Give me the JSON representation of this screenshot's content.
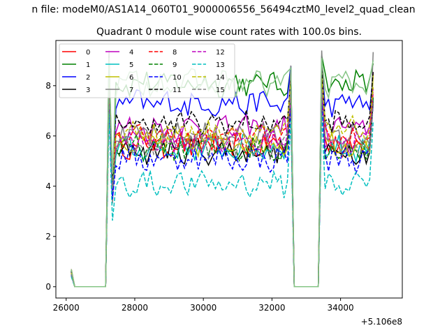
{
  "chart_data": {
    "type": "line",
    "suptitle": "n file: modeM0/AS1A14_060T01_9000006556_56494cztM0_level2_quad_clean",
    "title": "Quadrant 0 module wise count rates with 100.0s bins.",
    "xlabel": "",
    "ylabel": "",
    "x_offset_label": "+5.106e8",
    "xlim": [
      25700,
      35800
    ],
    "ylim": [
      -0.45,
      9.8
    ],
    "xticks": [
      26000,
      28000,
      30000,
      32000,
      34000
    ],
    "xtick_labels": [
      "26000",
      "28000",
      "30000",
      "32000",
      "34000"
    ],
    "yticks": [
      0,
      2,
      4,
      6,
      8
    ],
    "ytick_labels": [
      "0",
      "2",
      "4",
      "6",
      "8"
    ],
    "legend_position": "upper-left",
    "segments": [
      {
        "x_start": 26150,
        "x_end": 27150,
        "pattern": "falloff"
      },
      {
        "x_start": 27250,
        "x_end": 32550,
        "pattern": "active"
      },
      {
        "x_start": 32650,
        "x_end": 33350,
        "pattern": "zero"
      },
      {
        "x_start": 33450,
        "x_end": 34950,
        "pattern": "active"
      }
    ],
    "bin_width": 100,
    "series": [
      {
        "name": "0",
        "color": "#ff0000",
        "dash": "solid",
        "level": 5.6,
        "start": 0.7,
        "peak": 7.9,
        "dip": 4.4
      },
      {
        "name": "1",
        "color": "#008000",
        "dash": "solid",
        "level": 8.1,
        "start": 0.65,
        "peak": 9.2,
        "dip": 4.0
      },
      {
        "name": "2",
        "color": "#0000ff",
        "dash": "solid",
        "level": 7.3,
        "start": 0.6,
        "peak": 8.9,
        "dip": 3.9
      },
      {
        "name": "3",
        "color": "#000000",
        "dash": "solid",
        "level": 5.4,
        "start": 0.55,
        "peak": 7.7,
        "dip": 4.3
      },
      {
        "name": "4",
        "color": "#bf00bf",
        "dash": "solid",
        "level": 6.3,
        "start": 0.6,
        "peak": 8.7,
        "dip": 4.2
      },
      {
        "name": "5",
        "color": "#00bfbf",
        "dash": "solid",
        "level": 5.5,
        "start": 0.5,
        "peak": 8.0,
        "dip": 3.8
      },
      {
        "name": "6",
        "color": "#bfbf00",
        "dash": "solid",
        "level": 5.7,
        "start": 0.55,
        "peak": 8.5,
        "dip": 4.1
      },
      {
        "name": "7",
        "color": "#808080",
        "dash": "solid",
        "level": 6.0,
        "start": 0.6,
        "peak": 9.4,
        "dip": 3.3
      },
      {
        "name": "8",
        "color": "#ff0000",
        "dash": "dashed",
        "level": 5.9,
        "start": 0.55,
        "peak": 8.2,
        "dip": 4.3
      },
      {
        "name": "9",
        "color": "#008000",
        "dash": "dashed",
        "level": 5.5,
        "start": 0.5,
        "peak": 7.8,
        "dip": 4.2
      },
      {
        "name": "10",
        "color": "#0000ff",
        "dash": "dashed",
        "level": 5.1,
        "start": 0.45,
        "peak": 7.5,
        "dip": 3.6
      },
      {
        "name": "11",
        "color": "#000000",
        "dash": "dashed",
        "level": 6.5,
        "start": 0.6,
        "peak": 8.6,
        "dip": 4.3
      },
      {
        "name": "12",
        "color": "#bf00bf",
        "dash": "dashed",
        "level": 5.8,
        "start": 0.55,
        "peak": 8.0,
        "dip": 4.4
      },
      {
        "name": "13",
        "color": "#00bfbf",
        "dash": "dashed",
        "level": 4.1,
        "start": 0.4,
        "peak": 6.9,
        "dip": 2.6
      },
      {
        "name": "14",
        "color": "#bfbf00",
        "dash": "dashed",
        "level": 6.2,
        "start": 0.55,
        "peak": 8.3,
        "dip": 4.5
      },
      {
        "name": "15",
        "color": "#808080",
        "dash": "dashed",
        "level": 5.6,
        "start": 0.5,
        "peak": 7.9,
        "dip": 4.0
      },
      {
        "name": "",
        "color": "#85c585",
        "dash": "solid",
        "level": 8.1,
        "start": 0.7,
        "peak": 9.1,
        "dip": 4.6
      }
    ]
  }
}
